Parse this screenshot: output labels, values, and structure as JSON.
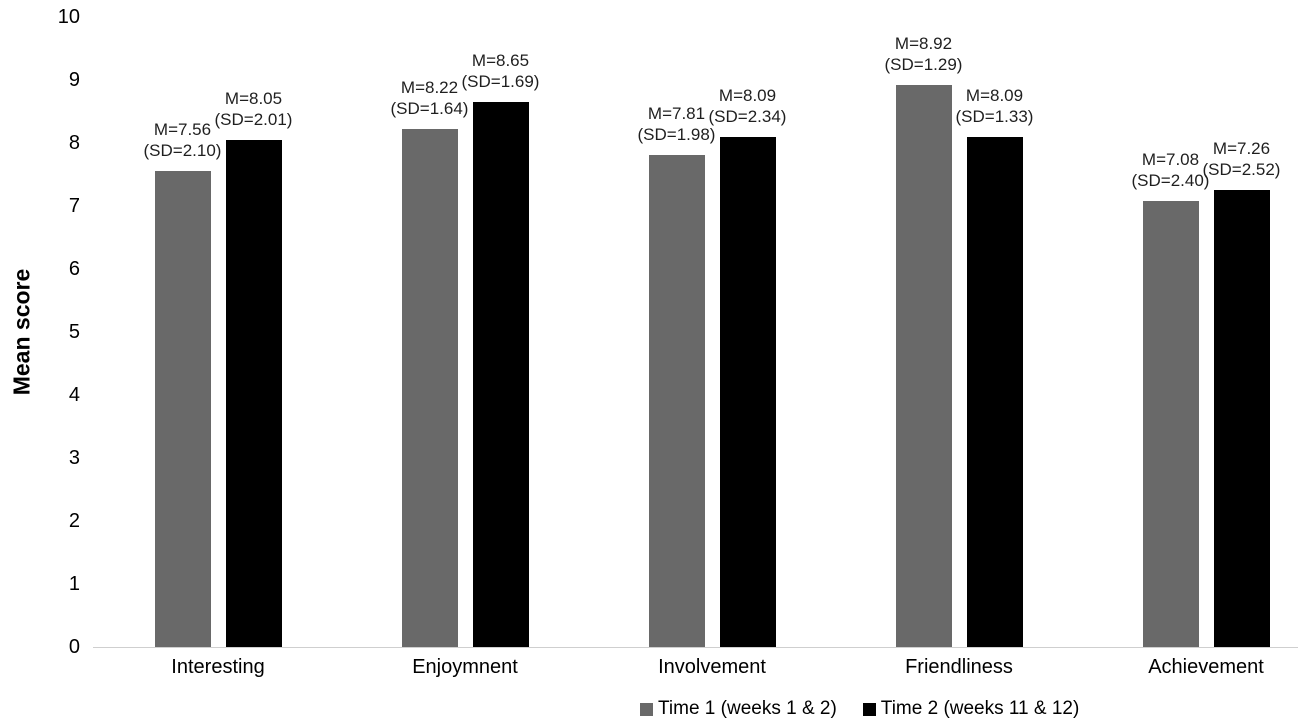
{
  "chart_data": {
    "type": "bar",
    "title": "",
    "xlabel": "",
    "ylabel": "Mean score",
    "ylim": [
      0,
      10
    ],
    "yticks": [
      0,
      1,
      2,
      3,
      4,
      5,
      6,
      7,
      8,
      9,
      10
    ],
    "grid": false,
    "legend_position": "bottom",
    "data_label_format": "M={value} (SD={sd})",
    "categories": [
      "Interesting",
      "Enjoymnent",
      "Involvement",
      "Friendliness",
      "Achievement"
    ],
    "series": [
      {
        "name": "Time 1 (weeks 1 & 2)",
        "color": "#696969",
        "values": [
          7.56,
          8.22,
          7.81,
          8.92,
          7.08
        ],
        "sd": [
          2.1,
          1.64,
          1.98,
          1.29,
          2.4
        ]
      },
      {
        "name": "Time 2 (weeks 11 & 12)",
        "color": "#000000",
        "values": [
          8.05,
          8.65,
          8.09,
          8.09,
          7.26
        ],
        "sd": [
          2.01,
          1.69,
          2.34,
          1.33,
          2.52
        ]
      }
    ]
  }
}
